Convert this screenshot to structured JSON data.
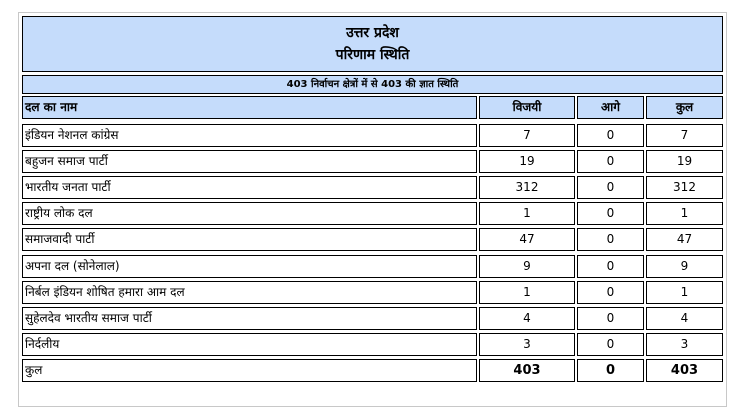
{
  "header": {
    "state": "उत्तर प्रदेश",
    "title": "परिणाम स्थिति",
    "subtitle": "403 निर्वाचन क्षेत्रों में से 403 की ज्ञात स्थिति"
  },
  "table": {
    "columns": [
      "दल का नाम",
      "विजयी",
      "आगे",
      "कुल"
    ],
    "rows": [
      {
        "party": "इंडियन नेशनल कांग्रेस",
        "won": "7",
        "leading": "0",
        "total": "7"
      },
      {
        "party": "बहुजन समाज पार्टी",
        "won": "19",
        "leading": "0",
        "total": "19"
      },
      {
        "party": "भारतीय जनता पार्टी",
        "won": "312",
        "leading": "0",
        "total": "312"
      },
      {
        "party": "राष्ट्रीय लोक दल",
        "won": "1",
        "leading": "0",
        "total": "1"
      },
      {
        "party": "समाजवादी पार्टी",
        "won": "47",
        "leading": "0",
        "total": "47"
      },
      {
        "party": "अपना दल (सोनेलाल)",
        "won": "9",
        "leading": "0",
        "total": "9"
      },
      {
        "party": "निर्बल इंडियन शोषित हमारा आम दल",
        "won": "1",
        "leading": "0",
        "total": "1"
      },
      {
        "party": "सुहेलदेव भारतीय समाज पार्टी",
        "won": "4",
        "leading": "0",
        "total": "4"
      },
      {
        "party": "निर्दलीय",
        "won": "3",
        "leading": "0",
        "total": "3"
      }
    ],
    "total_row": {
      "party": "कुल",
      "won": "403",
      "leading": "0",
      "total": "403"
    }
  }
}
